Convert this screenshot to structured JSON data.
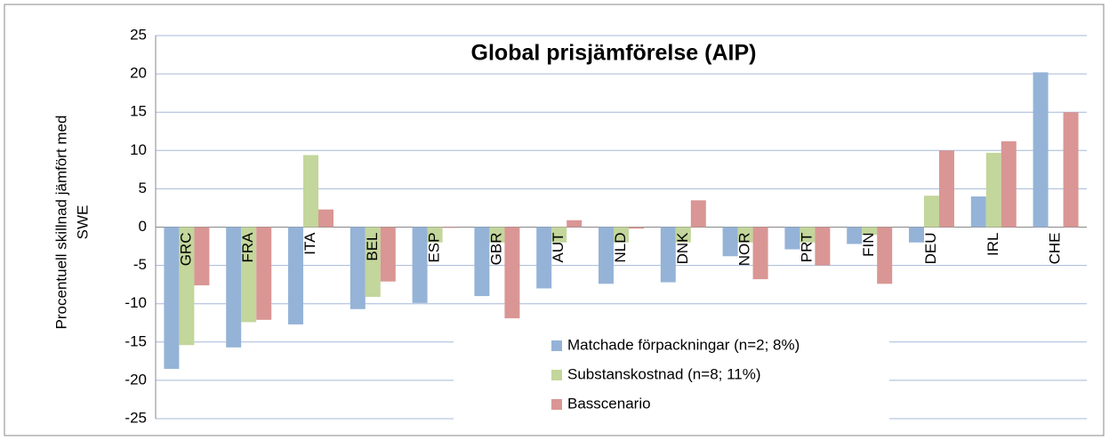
{
  "chart_data": {
    "type": "bar",
    "title": "Global prisjämförelse (AIP)",
    "y_label": [
      "Procentuell skillnad jämfört med",
      "SWE"
    ],
    "categories": [
      "GRC",
      "FRA",
      "ITA",
      "BEL",
      "ESP",
      "GBR",
      "AUT",
      "NLD",
      "DNK",
      "NOR",
      "PRT",
      "FIN",
      "DEU",
      "IRL",
      "CHE"
    ],
    "series": [
      {
        "name": "Matchade förpackningar (n=2; 8%)",
        "color": "#95b3d7",
        "values": [
          -18.5,
          -15.7,
          -12.7,
          -10.7,
          -9.9,
          -9.0,
          -8.0,
          -7.4,
          -7.2,
          -3.8,
          -2.9,
          -2.2,
          -2.0,
          4.0,
          20.2
        ]
      },
      {
        "name": "Substanskostnad (n=8; 11%)",
        "color": "#c3d69b",
        "values": [
          -15.4,
          -12.4,
          9.4,
          -9.1,
          -2.0,
          -2.0,
          -2.0,
          -2.0,
          -2.0,
          -2.0,
          -2.0,
          -1.0,
          4.1,
          9.7,
          0
        ]
      },
      {
        "name": "Basscenario",
        "color": "#d99694",
        "values": [
          -7.6,
          -12.1,
          2.3,
          -7.1,
          -0.1,
          -11.9,
          0.9,
          -0.2,
          3.5,
          -6.8,
          -5.0,
          -7.4,
          10.0,
          11.2,
          15.0
        ]
      }
    ],
    "ylim": [
      -25,
      25
    ],
    "yticks": [
      -25,
      -20,
      -15,
      -10,
      -5,
      0,
      5,
      10,
      15,
      20,
      25
    ],
    "grid": true,
    "legend": "lower-center"
  }
}
